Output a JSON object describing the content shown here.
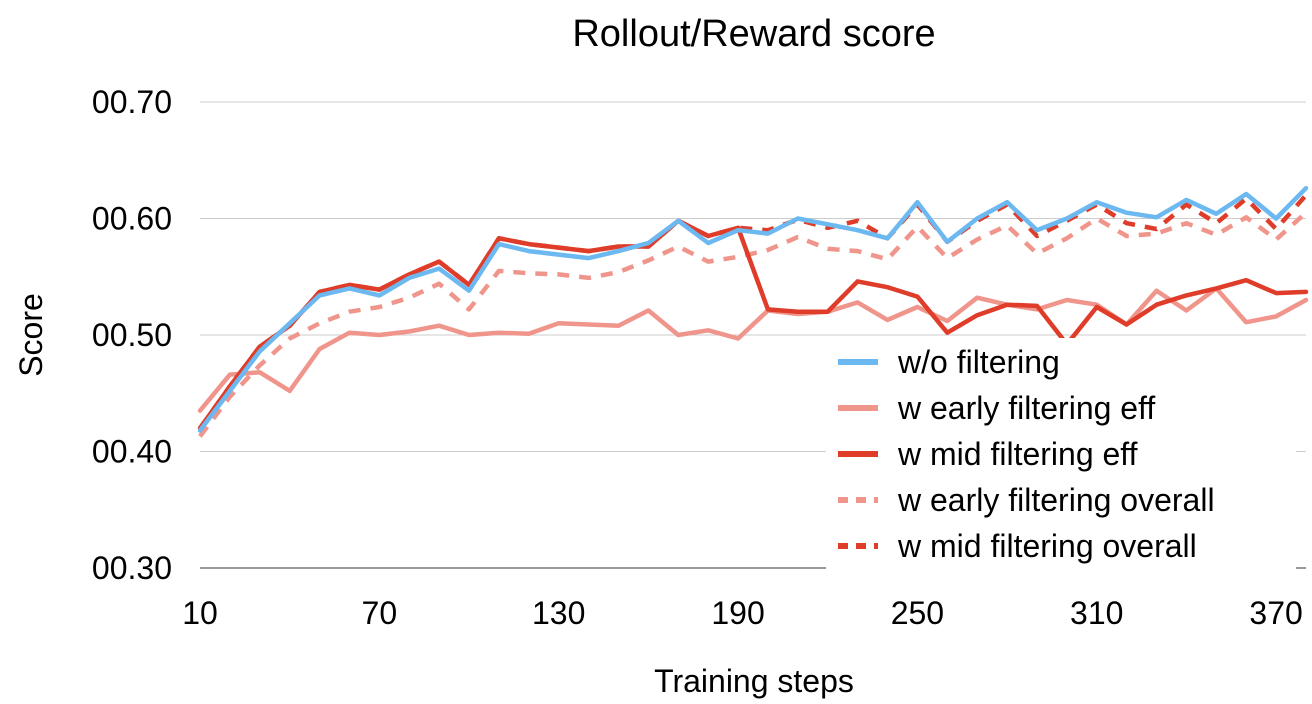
{
  "chart_data": {
    "type": "line",
    "title": "Rollout/Reward score",
    "xlabel": "Training steps",
    "ylabel": "Score",
    "xlim": [
      10,
      380
    ],
    "ylim": [
      0.3,
      0.7
    ],
    "x_ticks": [
      10,
      70,
      130,
      190,
      250,
      310,
      370
    ],
    "x_tick_labels": [
      "10",
      "70",
      "130",
      "190",
      "250",
      "310",
      "370"
    ],
    "y_ticks": [
      0.3,
      0.4,
      0.5,
      0.6,
      0.7
    ],
    "y_tick_labels": [
      "00.30",
      "00.40",
      "00.50",
      "00.60",
      "00.70"
    ],
    "grid": "horizontal",
    "legend_position": "bottom-right",
    "x": [
      10,
      20,
      30,
      40,
      50,
      60,
      70,
      80,
      90,
      100,
      110,
      120,
      130,
      140,
      150,
      160,
      170,
      180,
      190,
      200,
      210,
      220,
      230,
      240,
      250,
      260,
      270,
      280,
      290,
      300,
      310,
      320,
      330,
      340,
      350,
      360,
      370,
      380
    ],
    "series": [
      {
        "name": "w/o filtering",
        "color": "#6cb8f0",
        "style": "solid",
        "values": [
          0.418,
          0.452,
          0.486,
          0.51,
          0.534,
          0.54,
          0.534,
          0.549,
          0.557,
          0.538,
          0.578,
          0.572,
          0.569,
          0.566,
          0.572,
          0.579,
          0.598,
          0.579,
          0.59,
          0.587,
          0.6,
          0.595,
          0.59,
          0.583,
          0.614,
          0.58,
          0.6,
          0.614,
          0.59,
          0.6,
          0.614,
          0.605,
          0.601,
          0.616,
          0.604,
          0.621,
          0.6,
          0.626
        ]
      },
      {
        "name": "w early filtering eff",
        "color": "#f0958b",
        "style": "solid",
        "values": [
          0.435,
          0.466,
          0.468,
          0.452,
          0.488,
          0.502,
          0.5,
          0.503,
          0.508,
          0.5,
          0.502,
          0.501,
          0.51,
          0.509,
          0.508,
          0.521,
          0.5,
          0.504,
          0.497,
          0.521,
          0.518,
          0.52,
          0.528,
          0.513,
          0.524,
          0.512,
          0.532,
          0.526,
          0.522,
          0.53,
          0.526,
          0.509,
          0.538,
          0.521,
          0.54,
          0.511,
          0.516,
          0.53
        ]
      },
      {
        "name": "w mid filtering eff",
        "color": "#df3c2a",
        "style": "solid",
        "values": [
          0.42,
          0.456,
          0.49,
          0.508,
          0.537,
          0.543,
          0.539,
          0.552,
          0.563,
          0.543,
          0.583,
          0.578,
          0.575,
          0.572,
          0.576,
          0.576,
          0.598,
          0.585,
          0.592,
          0.522,
          0.52,
          0.52,
          0.546,
          0.541,
          0.533,
          0.502,
          0.517,
          0.526,
          0.525,
          0.492,
          0.524,
          0.509,
          0.526,
          0.534,
          0.54,
          0.547,
          0.536,
          0.537
        ]
      },
      {
        "name": "w early filtering overall",
        "color": "#f0958b",
        "style": "dashed",
        "values": [
          0.413,
          0.447,
          0.474,
          0.497,
          0.51,
          0.52,
          0.524,
          0.532,
          0.544,
          0.522,
          0.555,
          0.553,
          0.552,
          0.549,
          0.554,
          0.564,
          0.576,
          0.563,
          0.567,
          0.573,
          0.584,
          0.574,
          0.572,
          0.565,
          0.593,
          0.566,
          0.582,
          0.594,
          0.57,
          0.583,
          0.6,
          0.585,
          0.587,
          0.596,
          0.586,
          0.601,
          0.582,
          0.605
        ]
      },
      {
        "name": "w mid filtering overall",
        "color": "#df3c2a",
        "style": "dashed",
        "values": [
          0.42,
          0.456,
          0.49,
          0.508,
          0.537,
          0.543,
          0.539,
          0.552,
          0.563,
          0.543,
          0.583,
          0.578,
          0.575,
          0.572,
          0.576,
          0.576,
          0.598,
          0.585,
          0.592,
          0.59,
          0.599,
          0.592,
          0.598,
          0.583,
          0.612,
          0.58,
          0.598,
          0.612,
          0.585,
          0.598,
          0.612,
          0.596,
          0.591,
          0.612,
          0.596,
          0.617,
          0.591,
          0.62
        ]
      }
    ]
  }
}
